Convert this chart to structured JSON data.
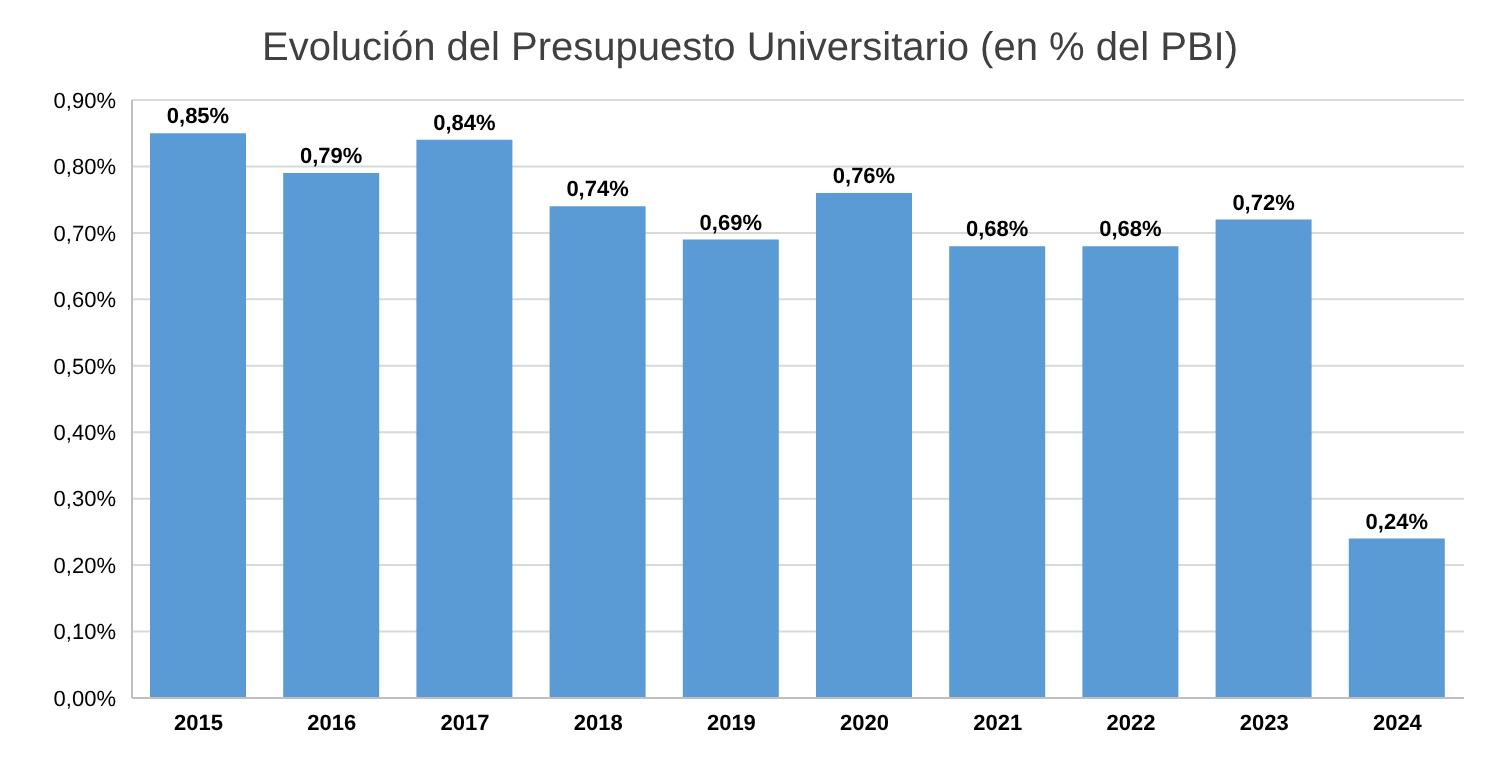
{
  "chart_data": {
    "type": "bar",
    "title": "Evolución del Presupuesto Universitario (en % del PBI)",
    "categories": [
      "2015",
      "2016",
      "2017",
      "2018",
      "2019",
      "2020",
      "2021",
      "2022",
      "2023",
      "2024"
    ],
    "values": [
      0.85,
      0.79,
      0.84,
      0.74,
      0.69,
      0.76,
      0.68,
      0.68,
      0.72,
      0.24
    ],
    "value_labels": [
      "0,85%",
      "0,79%",
      "0,84%",
      "0,74%",
      "0,69%",
      "0,76%",
      "0,68%",
      "0,68%",
      "0,72%",
      "0,24%"
    ],
    "color": "#5b9bd5",
    "ylim": [
      0,
      0.9
    ],
    "yticks": [
      {
        "value": 0,
        "label": "0,00%"
      },
      {
        "value": 0.1,
        "label": "0,10%"
      },
      {
        "value": 0.2,
        "label": "0,20%"
      },
      {
        "value": 0.3,
        "label": "0,30%"
      },
      {
        "value": 0.4,
        "label": "0,40%"
      },
      {
        "value": 0.5,
        "label": "0,50%"
      },
      {
        "value": 0.6,
        "label": "0,60%"
      },
      {
        "value": 0.7,
        "label": "0,70%"
      },
      {
        "value": 0.8,
        "label": "0,80%"
      },
      {
        "value": 0.9,
        "label": "0,90%"
      }
    ],
    "grid": "y"
  }
}
